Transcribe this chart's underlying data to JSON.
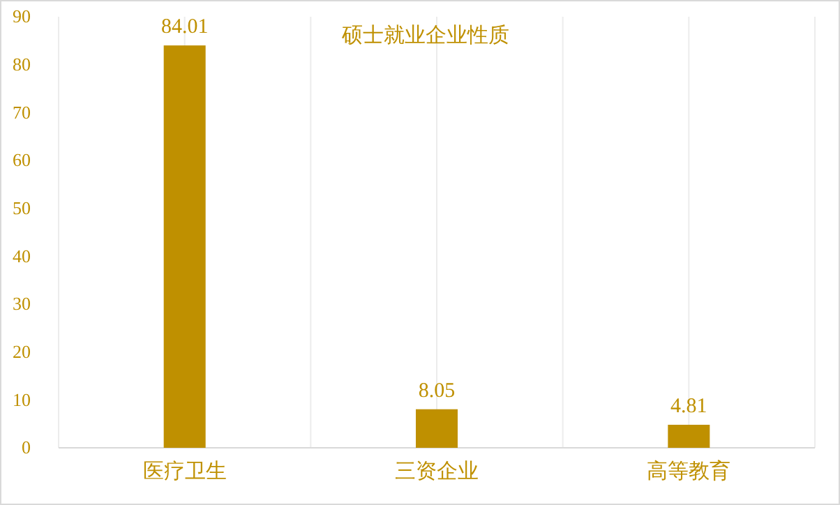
{
  "chart_data": {
    "type": "bar",
    "title": "硕士就业企业性质",
    "categories": [
      "医疗卫生",
      "三资企业",
      "高等教育"
    ],
    "values": [
      84.01,
      8.05,
      4.81
    ],
    "color": "#bf9000",
    "ylim": [
      0,
      90
    ],
    "yticks": [
      0,
      10,
      20,
      30,
      40,
      50,
      60,
      70,
      80,
      90
    ],
    "grid": "x",
    "data_labels": true
  }
}
